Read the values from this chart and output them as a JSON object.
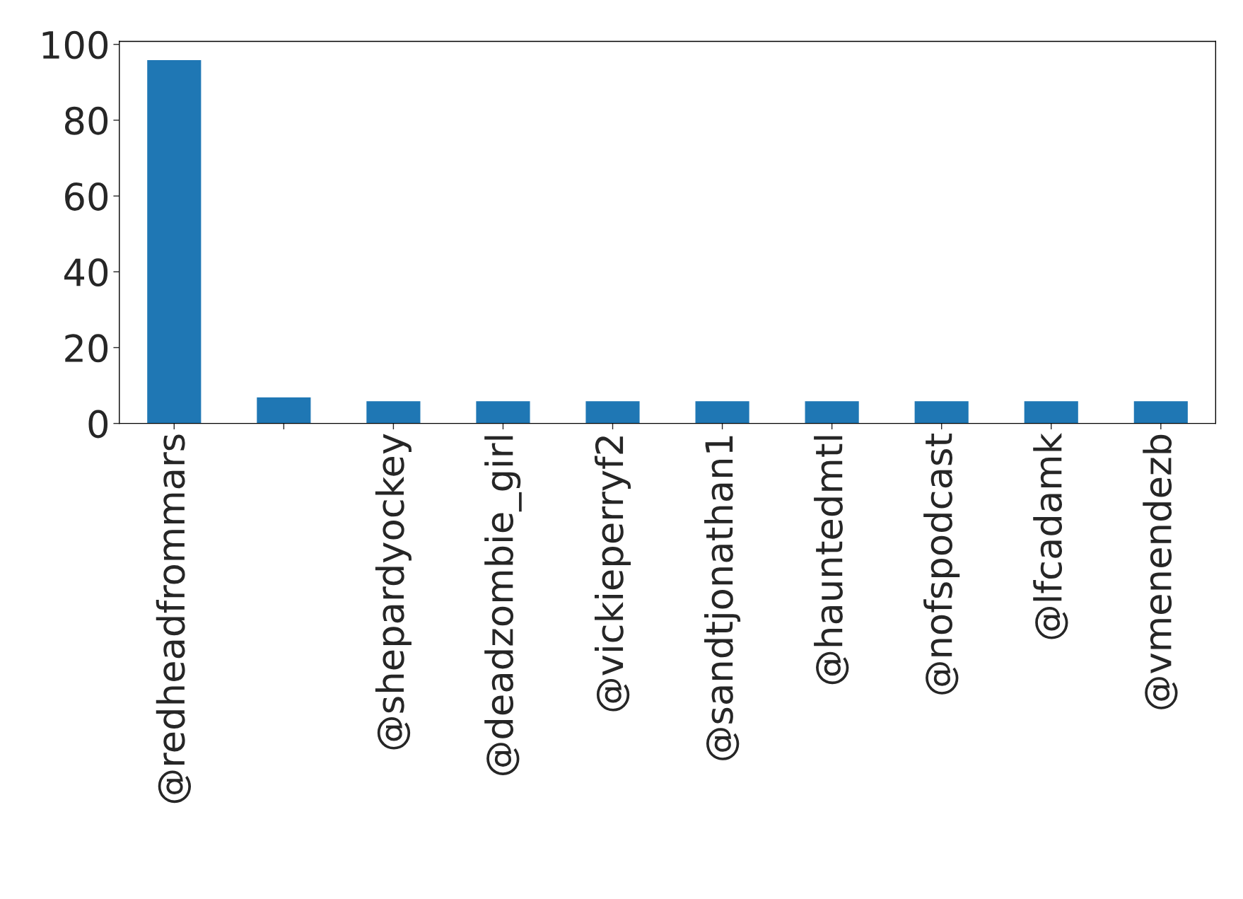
{
  "chart_data": {
    "type": "bar",
    "categories": [
      "@redheadfrommars",
      null,
      "@shepardyockey",
      "@deadzombie_girl",
      "@vickieperryf2",
      "@sandtjonathan1",
      "@hauntedmtl",
      "@nofspodcast",
      "@lfcadamk",
      "@vmenendezb"
    ],
    "values": [
      96,
      7,
      6,
      6,
      6,
      6,
      6,
      6,
      6,
      6
    ],
    "color": "#1f77b4",
    "ylim": [
      0,
      100.8
    ],
    "yticks": [
      0,
      20,
      40,
      60,
      80,
      100
    ],
    "grid": false,
    "legend": false
  }
}
